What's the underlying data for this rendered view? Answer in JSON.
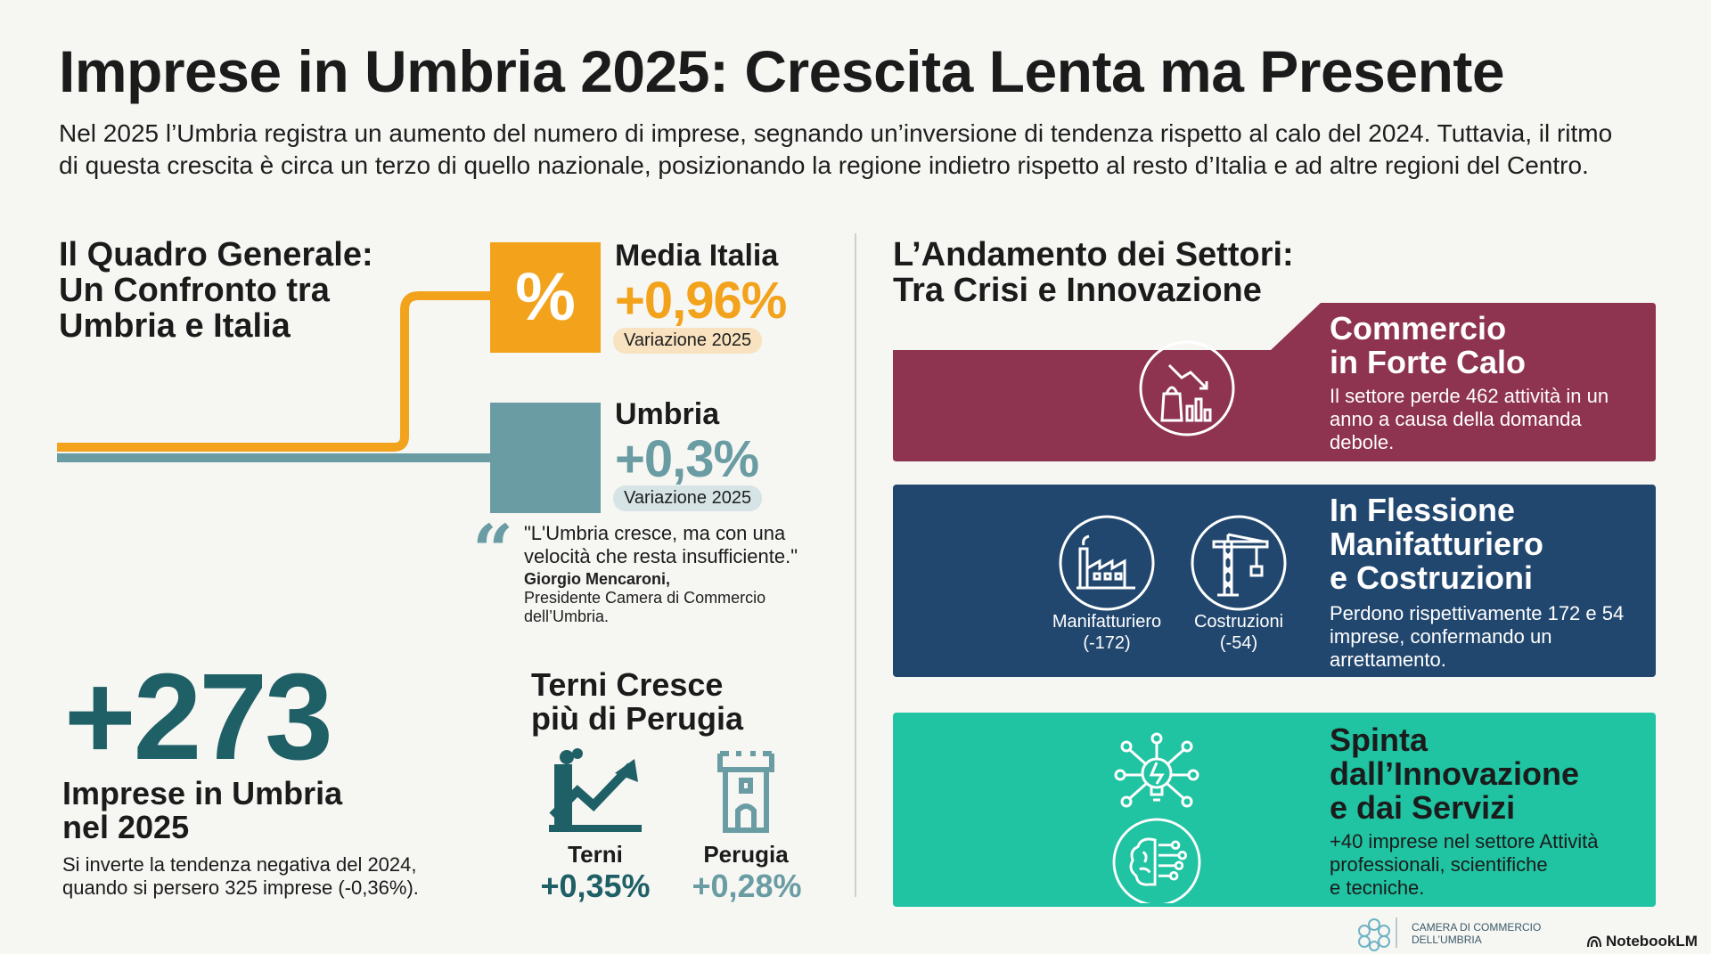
{
  "header": {
    "title": "Imprese in Umbria 2025: Crescita Lenta ma Presente",
    "subtitle_line1": "Nel 2025 l’Umbria registra un aumento del numero di imprese, segnando un’inversione di tendenza rispetto al calo del 2024. Tuttavia, il ritmo",
    "subtitle_line2": "di questa crescita è circa un terzo di quello nazionale, posizionando la regione indietro rispetto al resto d’Italia e ad altre regioni del Centro."
  },
  "left": {
    "heading": [
      "Il Quadro Generale:",
      "Un Confronto tra",
      "Umbria e Italia"
    ],
    "italia": {
      "icon_glyph": "%",
      "label": "Media Italia",
      "value": "+0,96%",
      "pill": "Variazione 2025",
      "color": "#f3a21b"
    },
    "umbria": {
      "label": "Umbria",
      "value": "+0,3%",
      "pill": "Variazione 2025",
      "color": "#6a9ca3"
    },
    "quote": {
      "mark": "“",
      "line1": "\"L'Umbria cresce, ma con una",
      "line2": "velocità che resta insufficiente.\"",
      "author": "Giorgio Mencaroni,",
      "role_line1": "Presidente Camera di Commercio",
      "role_line2": "dell’Umbria."
    },
    "total": {
      "value": "+273",
      "label_line1": "Imprese in Umbria",
      "label_line2": "nel 2025",
      "text_line1": "Si inverte la tendenza negativa del 2024,",
      "text_line2": "quando si persero 325 imprese (-0,36%)."
    },
    "cities": {
      "heading_line1": "Terni Cresce",
      "heading_line2": "più di Perugia",
      "terni": {
        "name": "Terni",
        "value": "+0,35%",
        "icon": "chart-growth-icon"
      },
      "perugia": {
        "name": "Perugia",
        "value": "+0,28%",
        "icon": "tower-icon"
      }
    }
  },
  "right": {
    "heading": [
      "L’Andamento dei Settori:",
      "Tra Crisi e Innovazione"
    ],
    "commercio": {
      "title_line1": "Commercio",
      "title_line2": "in Forte Calo",
      "text_line1": "Il settore perde 462 attività in un",
      "text_line2": "anno a causa della domanda",
      "text_line3": "debole.",
      "color": "#8e3350",
      "icon": "shopping-decline-icon"
    },
    "manifattura": {
      "title_line1": "In Flessione",
      "title_line2": "Manifatturiero",
      "title_line3": "e Costruzioni",
      "text_line1": "Perdono rispettivamente 172 e 54",
      "text_line2": "imprese, confermando un",
      "text_line3": "arrettamento.",
      "icon1_label_line1": "Manifatturiero",
      "icon1_label_line2": "(-172)",
      "icon2_label_line1": "Costruzioni",
      "icon2_label_line2": "(-54)",
      "color": "#22476f"
    },
    "innovazione": {
      "title_line1": "Spinta",
      "title_line2": "dall’Innovazione",
      "title_line3": "e dai Servizi",
      "text_line1": "+40 imprese nel settore Attività",
      "text_line2": "professionali, scientifiche",
      "text_line3": "e tecniche.",
      "color": "#20c3a2"
    }
  },
  "footer": {
    "logo_line1": "CAMERA DI COMMERCIO",
    "logo_line2": "DELL’UMBRIA",
    "brand": "NotebookLM"
  }
}
